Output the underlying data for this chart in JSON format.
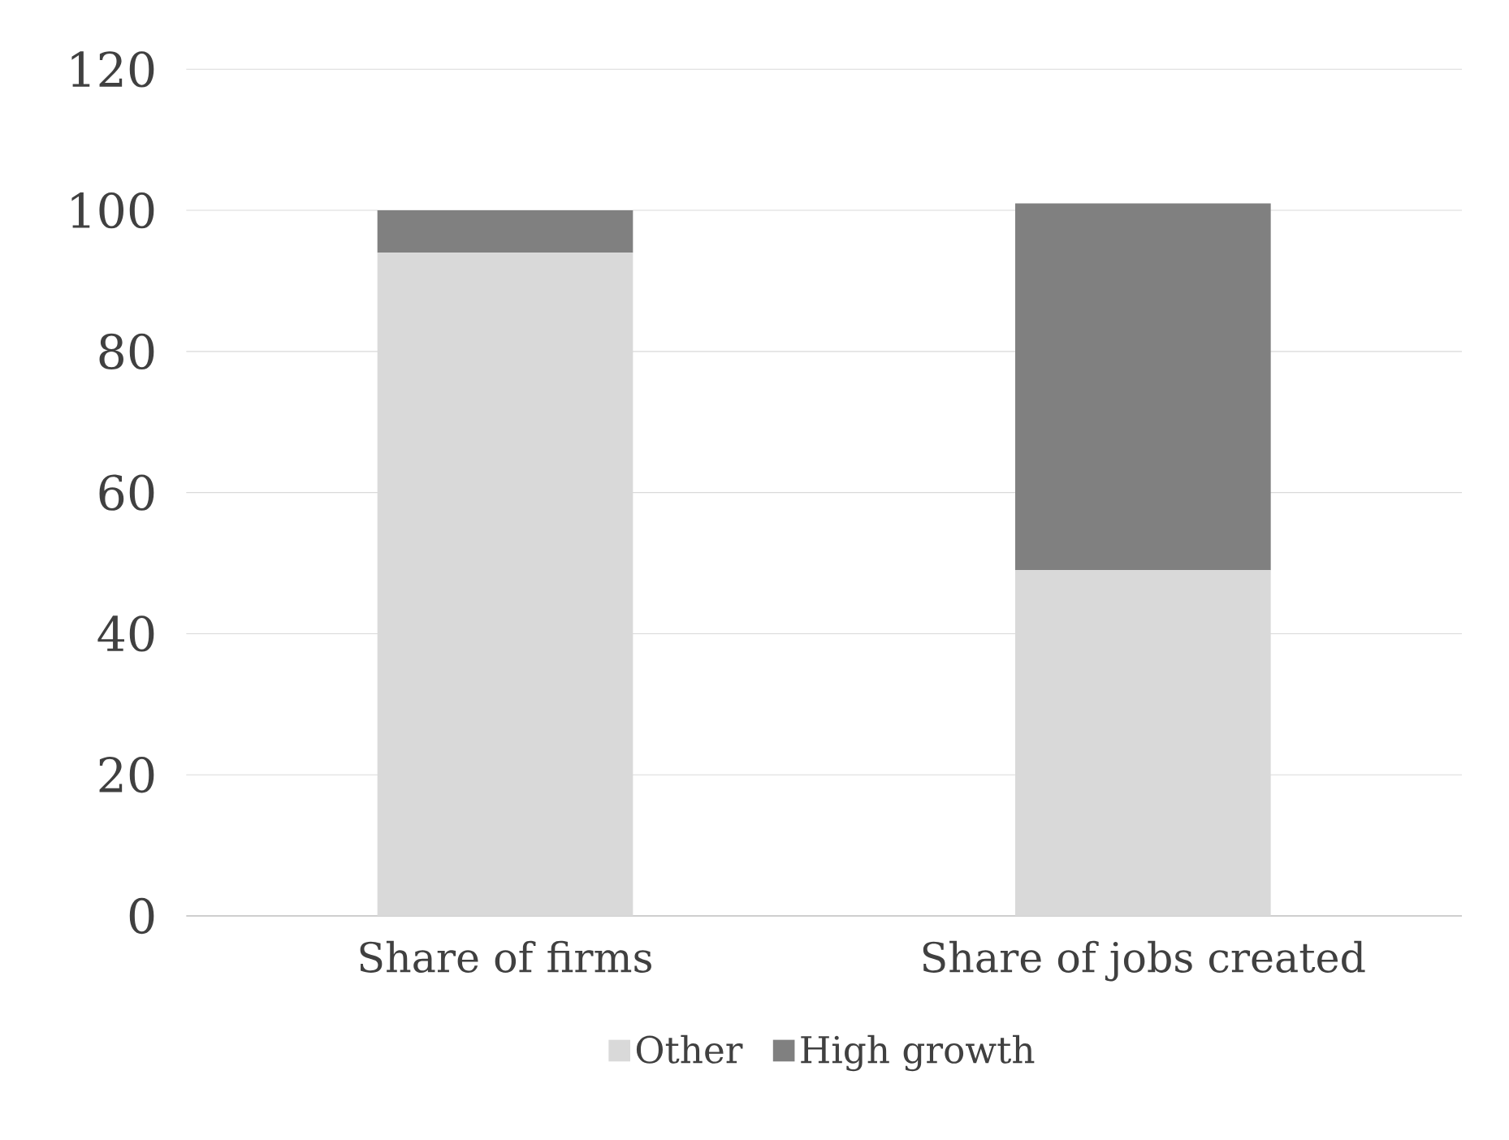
{
  "chart_data": {
    "type": "bar",
    "stacked": true,
    "categories": [
      "Share of firms",
      "Share of jobs created"
    ],
    "series": [
      {
        "name": "Other",
        "color": "#d9d9d9",
        "values": [
          94,
          49
        ]
      },
      {
        "name": "High growth",
        "color": "#808080",
        "values": [
          6,
          52
        ]
      }
    ],
    "ylim": [
      0,
      120
    ],
    "yticks": [
      0,
      20,
      40,
      60,
      80,
      100,
      120
    ],
    "grid": "y",
    "legend": "bottom"
  }
}
